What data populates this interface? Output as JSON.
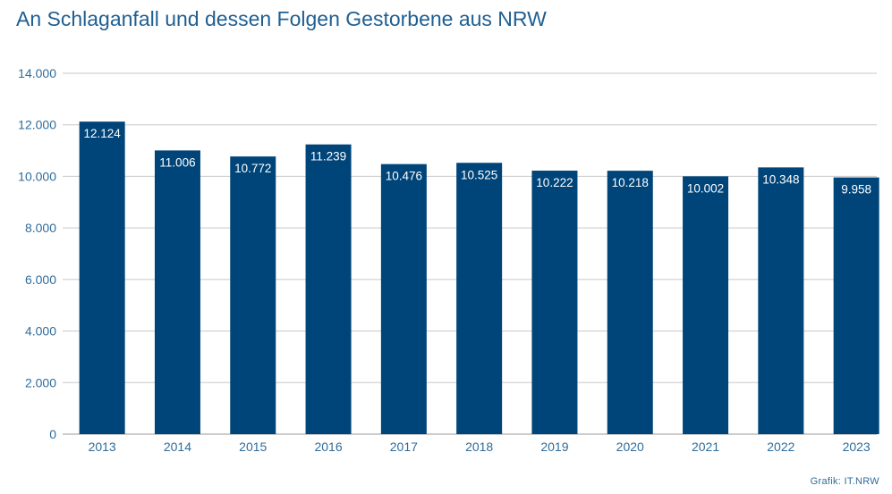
{
  "title": "An Schlaganfall und dessen Folgen Gestorbene aus NRW",
  "credit": "Grafik: IT.NRW",
  "colors": {
    "bar": "#004579",
    "title": "#1f5f92",
    "axis_text": "#2f6c9a",
    "bar_label": "#ffffff",
    "grid": "#c8c8c8"
  },
  "chart_data": {
    "type": "bar",
    "title": "An Schlaganfall und dessen Folgen Gestorbene aus NRW",
    "xlabel": "",
    "ylabel": "",
    "categories": [
      "2013",
      "2014",
      "2015",
      "2016",
      "2017",
      "2018",
      "2019",
      "2020",
      "2021",
      "2022",
      "2023"
    ],
    "values": [
      12124,
      11006,
      10772,
      11239,
      10476,
      10525,
      10222,
      10218,
      10002,
      10348,
      9958
    ],
    "value_labels": [
      "12.124",
      "11.006",
      "10.772",
      "11.239",
      "10.476",
      "10.525",
      "10.222",
      "10.218",
      "10.002",
      "10.348",
      "9.958"
    ],
    "ylim": [
      0,
      14000
    ],
    "yticks": [
      0,
      2000,
      4000,
      6000,
      8000,
      10000,
      12000,
      14000
    ],
    "ytick_labels": [
      "0",
      "2.000",
      "4.000",
      "6.000",
      "8.000",
      "10.000",
      "12.000",
      "14.000"
    ],
    "grid": true,
    "legend": "none"
  }
}
